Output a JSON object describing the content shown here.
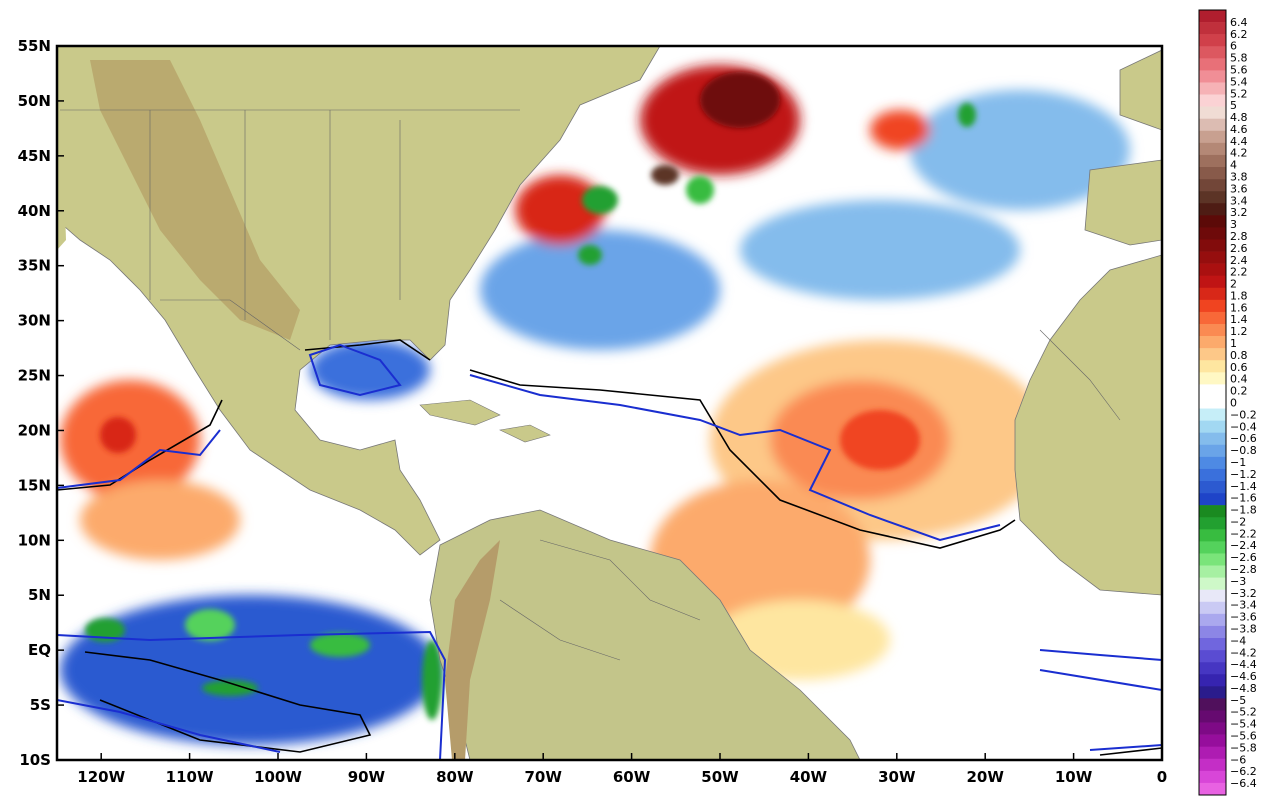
{
  "map": {
    "lat_ticks": [
      "55N",
      "50N",
      "45N",
      "40N",
      "35N",
      "30N",
      "25N",
      "20N",
      "15N",
      "10N",
      "5N",
      "EQ",
      "5S",
      "10S"
    ],
    "lon_ticks": [
      "120W",
      "110W",
      "100W",
      "90W",
      "80W",
      "70W",
      "60W",
      "50W",
      "40W",
      "30W",
      "20W",
      "10W",
      "0"
    ],
    "lat_range": [
      -10,
      55
    ],
    "lon_range": [
      -125,
      0
    ]
  },
  "colorbar": {
    "labels": [
      "6.4",
      "6.2",
      "6",
      "5.8",
      "5.6",
      "5.4",
      "5.2",
      "5",
      "4.8",
      "4.6",
      "4.4",
      "4.2",
      "4",
      "3.8",
      "3.6",
      "3.4",
      "3.2",
      "3",
      "2.8",
      "2.6",
      "2.4",
      "2.2",
      "2",
      "1.8",
      "1.6",
      "1.4",
      "1.2",
      "1",
      "0.8",
      "0.6",
      "0.4",
      "0.2",
      "0",
      "−0.2",
      "−0.4",
      "−0.6",
      "−0.8",
      "−1",
      "−1.2",
      "−1.4",
      "−1.6",
      "−1.8",
      "−2",
      "−2.2",
      "−2.4",
      "−2.6",
      "−2.8",
      "−3",
      "−3.2",
      "−3.4",
      "−3.6",
      "−3.8",
      "−4",
      "−4.2",
      "−4.4",
      "−4.6",
      "−4.8",
      "−5",
      "−5.2",
      "−5.4",
      "−5.6",
      "−5.8",
      "−6",
      "−6.2",
      "−6.4"
    ],
    "colors": [
      "#b01e2e",
      "#c0303c",
      "#d0404a",
      "#dc5860",
      "#e87078",
      "#f08e96",
      "#f6b2b6",
      "#fbd2d4",
      "#f0dcd4",
      "#dcbcb2",
      "#c8a090",
      "#b48876",
      "#9e705e",
      "#885a4a",
      "#724638",
      "#5c3426",
      "#4e1c14",
      "#5c0a08",
      "#6e0a0a",
      "#820c0c",
      "#960e0e",
      "#aa1010",
      "#c01414",
      "#d82818",
      "#f04420",
      "#f86838",
      "#fa8a52",
      "#fcaa6c",
      "#fdc888",
      "#fee6a0",
      "#fff8c4",
      "#ffffff",
      "#ffffff",
      "#c6eef8",
      "#a2d8f2",
      "#84bcec",
      "#6aa4e8",
      "#4e8ae4",
      "#3a70dc",
      "#2c5ad0",
      "#1e44c8",
      "#1a8a20",
      "#22a030",
      "#38bc40",
      "#54d25c",
      "#7ae47a",
      "#a6f0a2",
      "#cef8c8",
      "#e8e8f8",
      "#cacaf4",
      "#aaa8ee",
      "#8c86e6",
      "#7066de",
      "#5a4cd2",
      "#4636c2",
      "#3624b0",
      "#2a1c8c",
      "#50105c",
      "#660a70",
      "#7e0a86",
      "#960e9c",
      "#ae1cb2",
      "#c42ec6",
      "#d846d8",
      "#e862e2"
    ]
  }
}
